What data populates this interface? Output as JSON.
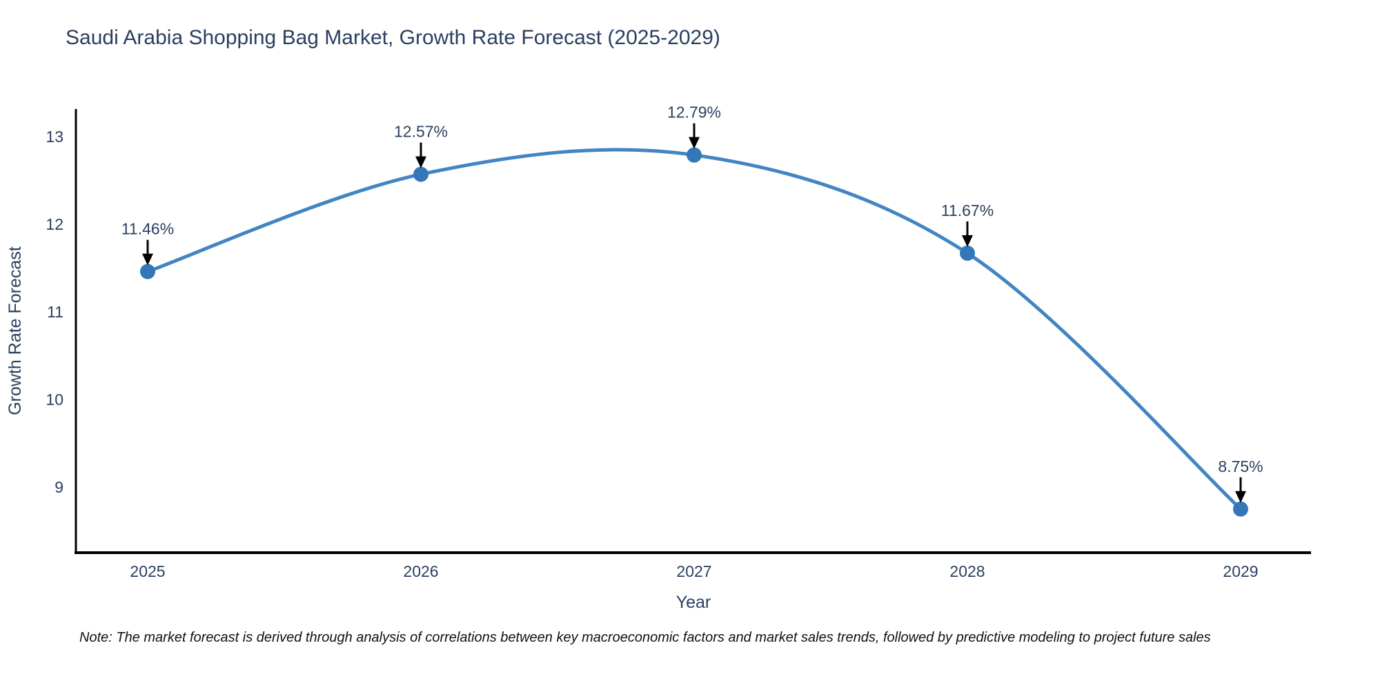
{
  "title": "Saudi Arabia Shopping Bag Market, Growth Rate Forecast (2025-2029)",
  "note": "Note: The market forecast is derived through analysis of correlations between key macroeconomic factors and market sales trends, followed by predictive modeling to project future sales",
  "chart_data": {
    "type": "line",
    "line_shape": "spline",
    "title": "Saudi Arabia Shopping Bag Market, Growth Rate Forecast (2025-2029)",
    "xlabel": "Year",
    "ylabel": "Growth Rate Forecast",
    "categories": [
      "2025",
      "2026",
      "2027",
      "2028",
      "2029"
    ],
    "x": [
      2025,
      2026,
      2027,
      2028,
      2029
    ],
    "series": [
      {
        "name": "Growth Rate Forecast",
        "values": [
          11.46,
          12.57,
          12.79,
          11.67,
          8.75
        ]
      }
    ],
    "point_labels": [
      "11.46%",
      "12.57%",
      "12.79%",
      "11.67%",
      "8.75%"
    ],
    "y_ticks": [
      13,
      12,
      11,
      10,
      9
    ],
    "xlim": [
      2024.74,
      2029.27
    ],
    "ylim": [
      8.2,
      13.35
    ],
    "grid": false,
    "legend_position": "none",
    "annotations_have_arrows": true,
    "colors": {
      "line": "#4285c2",
      "marker": "#3377b8",
      "axis": "#000000",
      "arrow": "#000000",
      "text": "#2a3f5f",
      "note_text": "#111111",
      "background": "#ffffff"
    }
  }
}
